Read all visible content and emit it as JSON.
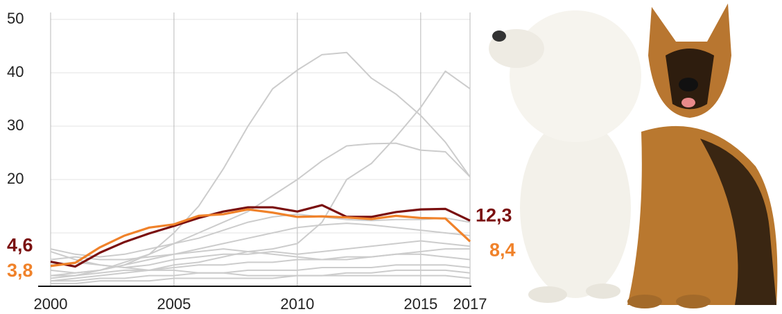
{
  "chart_data": {
    "type": "line",
    "x": [
      2000,
      2001,
      2002,
      2003,
      2004,
      2005,
      2006,
      2007,
      2008,
      2009,
      2010,
      2011,
      2012,
      2013,
      2014,
      2015,
      2016,
      2017
    ],
    "xlim": [
      2000,
      2017
    ],
    "xticks": [
      2000,
      2005,
      2010,
      2015,
      2017
    ],
    "ylim": [
      0,
      50
    ],
    "yticks": [
      {
        "value": 10,
        "label": null
      },
      20,
      30,
      40,
      50
    ],
    "grid": true,
    "series": [
      {
        "color": "#cccccc",
        "values": [
          2,
          2.5,
          3,
          4,
          6,
          10,
          15,
          22,
          30,
          37,
          40.5,
          43.4,
          43.8,
          39,
          36,
          32,
          27,
          20.5
        ]
      },
      {
        "color": "#cccccc",
        "values": [
          1,
          1.5,
          2,
          2.5,
          3,
          4,
          4.5,
          5.5,
          6.5,
          7,
          8,
          12,
          20,
          23,
          28,
          33.5,
          40.3,
          37
        ]
      },
      {
        "color": "#cccccc",
        "values": [
          1.5,
          2,
          3,
          4.5,
          6,
          8,
          10,
          12,
          14,
          17,
          20,
          23.5,
          26.3,
          26.7,
          26.8,
          25.5,
          25.2,
          20.5
        ]
      },
      {
        "color": "#cccccc",
        "values": [
          7,
          6,
          5.5,
          6,
          7,
          8,
          9,
          10.5,
          12,
          13,
          13.5,
          13,
          12.5,
          12.3,
          12.5,
          12.5,
          12.8,
          12
        ]
      },
      {
        "color": "#cccccc",
        "values": [
          3,
          2.5,
          3,
          4,
          5,
          6,
          7,
          8,
          9,
          10,
          11,
          11.5,
          11.8,
          11.5,
          11,
          10.5,
          10,
          9.5
        ]
      },
      {
        "color": "#cccccc",
        "values": [
          6.5,
          5,
          4,
          3.5,
          4,
          5,
          5.5,
          6,
          6,
          6.5,
          6,
          6.5,
          7,
          7.5,
          8,
          8.5,
          8,
          7.5
        ]
      },
      {
        "color": "#cccccc",
        "values": [
          2,
          2,
          2.5,
          3,
          3,
          3.5,
          4,
          4,
          4.5,
          4.5,
          5,
          5,
          5.5,
          5.5,
          6,
          6,
          5.5,
          5
        ]
      },
      {
        "color": "#cccccc",
        "values": [
          1,
          1,
          1.5,
          1.5,
          2,
          2,
          2.5,
          2.5,
          3,
          3,
          3,
          3.5,
          3.5,
          3.5,
          4,
          4,
          4,
          3.5
        ]
      },
      {
        "color": "#cccccc",
        "values": [
          4,
          4.5,
          4,
          3.5,
          3,
          3,
          2.5,
          2.5,
          2,
          2,
          2,
          2,
          2.5,
          2.5,
          3,
          3,
          3,
          2.5
        ]
      },
      {
        "color": "#cccccc",
        "values": [
          0.5,
          0.5,
          1,
          1,
          1,
          1.5,
          1.5,
          1.5,
          1.5,
          1.5,
          2,
          2,
          2,
          2,
          2,
          2,
          2,
          1.5
        ]
      },
      {
        "color": "#cccccc",
        "values": [
          5,
          5.5,
          5,
          5,
          5.5,
          6,
          6.5,
          7,
          6.5,
          6,
          5.5,
          5,
          5,
          5.5,
          6,
          6.5,
          7,
          7
        ]
      },
      {
        "color": "#7a0f0f",
        "values": [
          4.6,
          3.7,
          6.3,
          8.3,
          9.9,
          11.3,
          12.8,
          14.0,
          14.8,
          14.8,
          14.0,
          15.2,
          13.0,
          13.0,
          13.9,
          14.4,
          14.5,
          12.3
        ],
        "value_labels": [
          "4,6",
          null,
          null,
          null,
          null,
          null,
          null,
          null,
          null,
          null,
          null,
          null,
          null,
          null,
          null,
          null,
          null,
          "12,3"
        ]
      },
      {
        "color": "#f0822a",
        "values": [
          3.8,
          4.4,
          7.3,
          9.5,
          11.0,
          11.6,
          13.2,
          13.5,
          14.4,
          13.8,
          13.0,
          13.1,
          12.9,
          12.6,
          13.2,
          12.8,
          12.7,
          8.4
        ],
        "value_labels": [
          "3,8",
          null,
          null,
          null,
          null,
          null,
          null,
          null,
          null,
          null,
          null,
          null,
          null,
          null,
          null,
          null,
          null,
          "8,4"
        ]
      }
    ]
  }
}
